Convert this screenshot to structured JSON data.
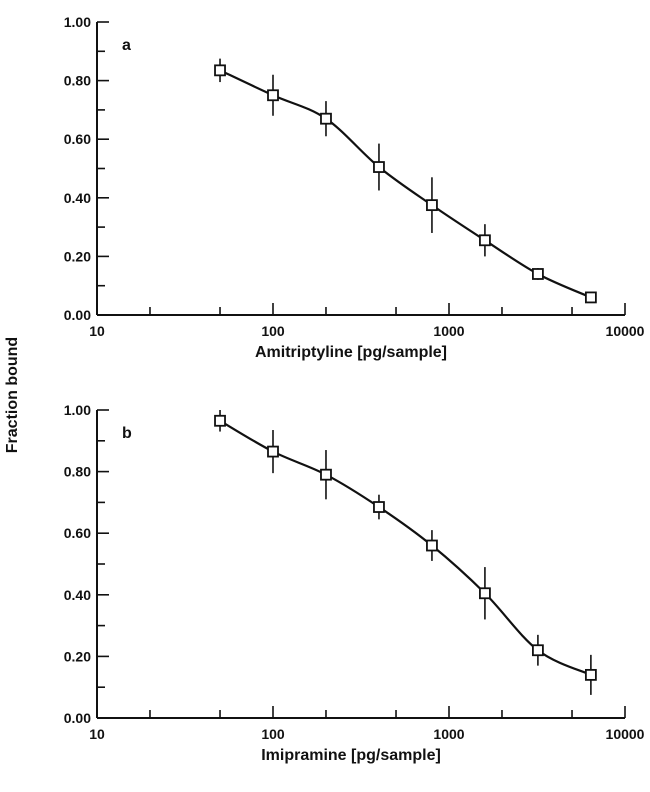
{
  "ylabel": "Fraction bound",
  "chart_data": [
    {
      "type": "scatter",
      "panel_label": "a",
      "xlabel": "Amitriptyline [pg/sample]",
      "ylabel": "Fraction bound",
      "x_scale": "log",
      "xlim": [
        10,
        10000
      ],
      "ylim": [
        0,
        1
      ],
      "x_tick_labels": [
        "10",
        "100",
        "1000",
        "10000"
      ],
      "y_tick_labels": [
        "0.00",
        "0.20",
        "0.40",
        "0.60",
        "0.80",
        "1.00"
      ],
      "grid": false,
      "series": [
        {
          "x": [
            50,
            100,
            200,
            400,
            800,
            1600,
            3200,
            6400
          ],
          "y": [
            0.835,
            0.75,
            0.67,
            0.505,
            0.375,
            0.255,
            0.14,
            0.06
          ],
          "y_error": [
            0.04,
            0.07,
            0.06,
            0.08,
            0.095,
            0.055,
            0.02,
            0.01
          ],
          "fit_curve": true
        }
      ]
    },
    {
      "type": "scatter",
      "panel_label": "b",
      "xlabel": "Imipramine [pg/sample]",
      "ylabel": "Fraction bound",
      "x_scale": "log",
      "xlim": [
        10,
        10000
      ],
      "ylim": [
        0,
        1
      ],
      "x_tick_labels": [
        "10",
        "100",
        "1000",
        "10000"
      ],
      "y_tick_labels": [
        "0.00",
        "0.20",
        "0.40",
        "0.60",
        "0.80",
        "1.00"
      ],
      "grid": false,
      "series": [
        {
          "x": [
            50,
            100,
            200,
            400,
            800,
            1600,
            3200,
            6400
          ],
          "y": [
            0.965,
            0.865,
            0.79,
            0.685,
            0.56,
            0.405,
            0.22,
            0.14
          ],
          "y_error": [
            0.035,
            0.07,
            0.08,
            0.04,
            0.05,
            0.085,
            0.05,
            0.065
          ],
          "fit_curve": true
        }
      ]
    }
  ]
}
